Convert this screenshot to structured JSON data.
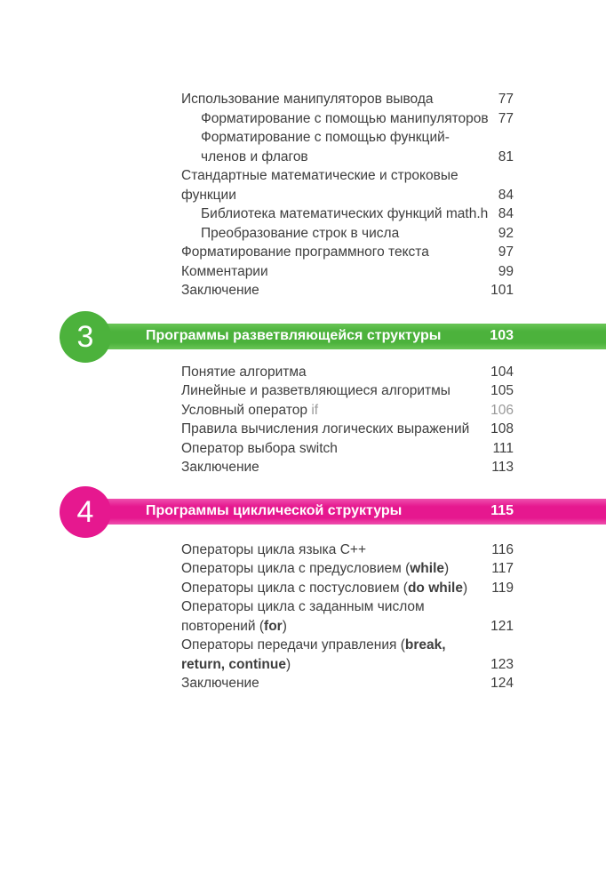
{
  "colors": {
    "chapter3": "#4cb23c",
    "chapter3_light": "#6ac657",
    "chapter4": "#e6188f",
    "chapter4_light": "#ef50ae",
    "text": "#3e3e3e",
    "muted_text": "#9a9a9a"
  },
  "toc": {
    "sections": [
      {
        "type": "entries",
        "entries": [
          {
            "indent": 0,
            "segments": [
              {
                "text": "Использование манипуляторов вывода"
              }
            ],
            "page": "77"
          },
          {
            "indent": 1,
            "segments": [
              {
                "text": "Форматирование с помощью манипуляторов"
              }
            ],
            "page": "77"
          },
          {
            "indent": 1,
            "segments": [
              {
                "text": "Форматирование с помощью функций-"
              },
              {
                "break": true
              },
              {
                "text": "членов и флагов"
              }
            ],
            "page": "81"
          },
          {
            "indent": 0,
            "segments": [
              {
                "text": "Стандартные математические и строковые"
              },
              {
                "break": true
              },
              {
                "text": "функции"
              }
            ],
            "page": "84"
          },
          {
            "indent": 1,
            "segments": [
              {
                "text": "Библиотека математических функций math.h"
              }
            ],
            "page": "84"
          },
          {
            "indent": 1,
            "segments": [
              {
                "text": "Преобразование строк в числа"
              }
            ],
            "page": "92"
          },
          {
            "indent": 0,
            "segments": [
              {
                "text": "Форматирование программного текста"
              }
            ],
            "page": "97"
          },
          {
            "indent": 0,
            "segments": [
              {
                "text": "Комментарии"
              }
            ],
            "page": "99"
          },
          {
            "indent": 0,
            "segments": [
              {
                "text": "Заключение"
              }
            ],
            "page": "101"
          }
        ]
      },
      {
        "type": "chapter",
        "number": "3",
        "title": "Программы разветвляющейся структуры",
        "page": "103",
        "color_key": "chapter3"
      },
      {
        "type": "entries",
        "entries": [
          {
            "indent": 0,
            "segments": [
              {
                "text": "Понятие алгоритма"
              }
            ],
            "page": "104"
          },
          {
            "indent": 0,
            "segments": [
              {
                "text": "Линейные и разветвляющиеся алгоритмы"
              }
            ],
            "page": "105"
          },
          {
            "indent": 0,
            "segments": [
              {
                "text": "Условный оператор "
              },
              {
                "text": "if",
                "muted": true
              }
            ],
            "page": "106",
            "page_muted": true
          },
          {
            "indent": 0,
            "segments": [
              {
                "text": "Правила вычисления логических выражений"
              }
            ],
            "page": "108"
          },
          {
            "indent": 0,
            "segments": [
              {
                "text": "Оператор выбора switch"
              }
            ],
            "page": "111"
          },
          {
            "indent": 0,
            "segments": [
              {
                "text": "Заключение"
              }
            ],
            "page": "113"
          }
        ]
      },
      {
        "type": "chapter",
        "number": "4",
        "title": "Программы циклической структуры",
        "page": "115",
        "color_key": "chapter4"
      },
      {
        "type": "entries",
        "entries": [
          {
            "indent": 0,
            "segments": [
              {
                "text": "Операторы цикла языка C++"
              }
            ],
            "page": "116"
          },
          {
            "indent": 0,
            "segments": [
              {
                "text": "Операторы цикла с предусловием ("
              },
              {
                "text": "while",
                "bold": true
              },
              {
                "text": ")"
              }
            ],
            "page": "117"
          },
          {
            "indent": 0,
            "segments": [
              {
                "text": "Операторы цикла с постусловием ("
              },
              {
                "text": "do while",
                "bold": true
              },
              {
                "text": ")"
              }
            ],
            "page": "119"
          },
          {
            "indent": 0,
            "segments": [
              {
                "text": "Операторы цикла с заданным числом"
              },
              {
                "break": true
              },
              {
                "text": "повторений ("
              },
              {
                "text": "for",
                "bold": true
              },
              {
                "text": ")"
              }
            ],
            "page": "121"
          },
          {
            "indent": 0,
            "segments": [
              {
                "text": "Операторы передачи управления ("
              },
              {
                "text": "break,",
                "bold": true
              },
              {
                "break": true
              },
              {
                "text": "return, continue",
                "bold": true
              },
              {
                "text": ")"
              }
            ],
            "page": "123"
          },
          {
            "indent": 0,
            "segments": [
              {
                "text": "Заключение"
              }
            ],
            "page": "124"
          }
        ]
      }
    ]
  }
}
